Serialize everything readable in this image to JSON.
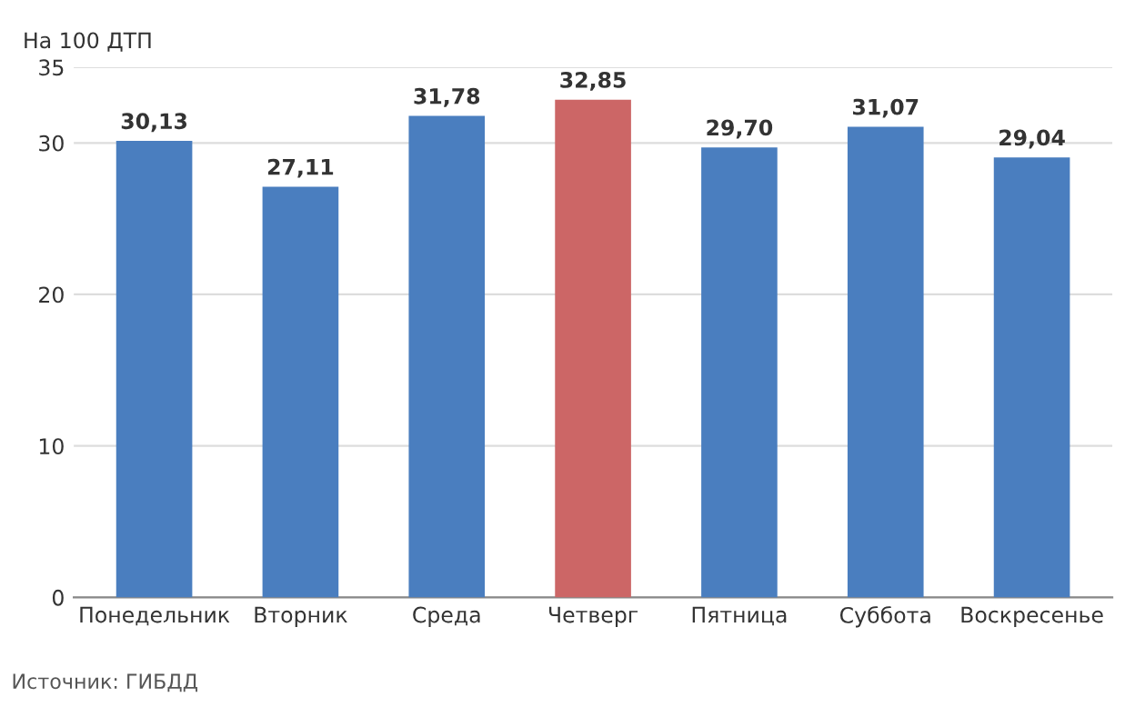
{
  "chart_data": {
    "type": "bar",
    "ylabel": "На 100 ДТП",
    "categories": [
      "Понедельник",
      "Вторник",
      "Среда",
      "Четверг",
      "Пятница",
      "Суббота",
      "Воскресенье"
    ],
    "values": [
      30.13,
      27.11,
      31.78,
      32.85,
      29.7,
      31.07,
      29.04
    ],
    "value_labels": [
      "30,13",
      "27,11",
      "31,78",
      "32,85",
      "29,70",
      "31,07",
      "29,04"
    ],
    "colors": [
      "#4a7ebf",
      "#4a7ebf",
      "#4a7ebf",
      "#cc6666",
      "#4a7ebf",
      "#4a7ebf",
      "#4a7ebf"
    ],
    "ylim": [
      0,
      35
    ],
    "yticks": [
      0,
      10,
      20,
      30,
      35
    ],
    "grid": "y",
    "annotations": [
      "Источник: ГИБДД"
    ]
  }
}
